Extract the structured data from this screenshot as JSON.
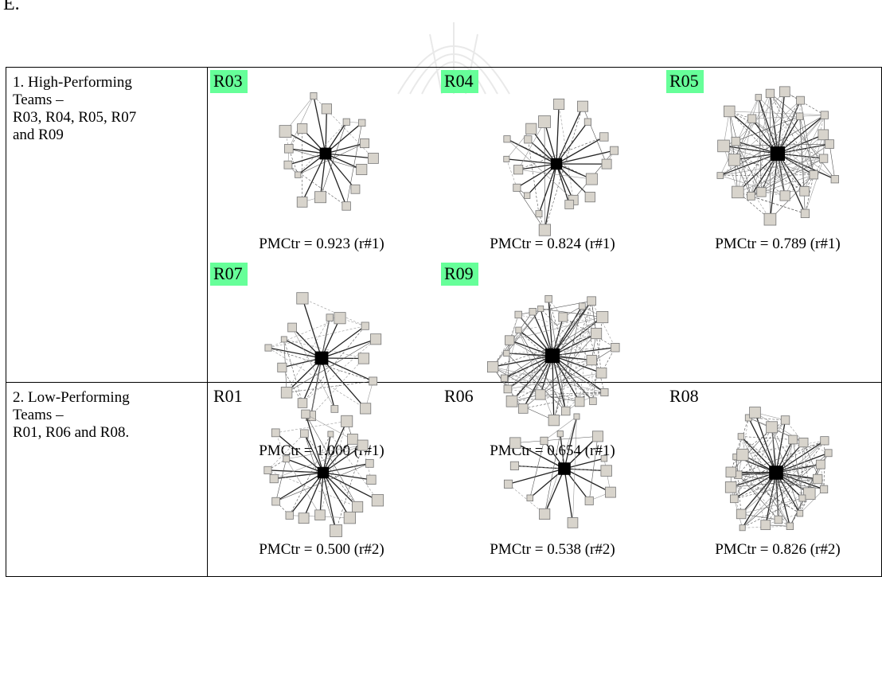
{
  "page_letter": "E.",
  "rows": [
    {
      "label_lines": [
        "1. High-Performing",
        "Teams –",
        "R03, R04, R05, R07",
        "and R09"
      ],
      "panels": [
        {
          "id": "R03",
          "highlight": true,
          "pmctr": "PMCtr = 0.923 (r#1)",
          "density": 0.35,
          "nodes": 16
        },
        {
          "id": "R04",
          "highlight": true,
          "pmctr": "PMCtr = 0.824 (r#1)",
          "density": 0.3,
          "nodes": 20
        },
        {
          "id": "R05",
          "highlight": true,
          "pmctr": "PMCtr = 0.789 (r#1)",
          "density": 0.75,
          "nodes": 24
        },
        {
          "id": "R07",
          "highlight": true,
          "pmctr": "PMCtr = 1.000 (r#1)",
          "density": 0.6,
          "nodes": 16
        },
        {
          "id": "R09",
          "highlight": true,
          "pmctr": "PMCtr = 0.654 (r#1)",
          "density": 0.8,
          "nodes": 26
        }
      ]
    },
    {
      "label_lines": [
        "2. Low-Performing",
        "Teams –",
        "R01, R06 and R08."
      ],
      "panels": [
        {
          "id": "R01",
          "highlight": false,
          "pmctr": "PMCtr = 0.500 (r#2)",
          "density": 0.3,
          "nodes": 20
        },
        {
          "id": "R06",
          "highlight": false,
          "pmctr": "PMCtr = 0.538 (r#2)",
          "density": 0.45,
          "nodes": 14
        },
        {
          "id": "R08",
          "highlight": false,
          "pmctr": "PMCtr = 0.826 (r#2)",
          "density": 0.7,
          "nodes": 26
        }
      ]
    }
  ],
  "colors": {
    "highlight": "#66ff99",
    "node_fill": "#d8d4cc",
    "hub_fill": "#000000"
  }
}
